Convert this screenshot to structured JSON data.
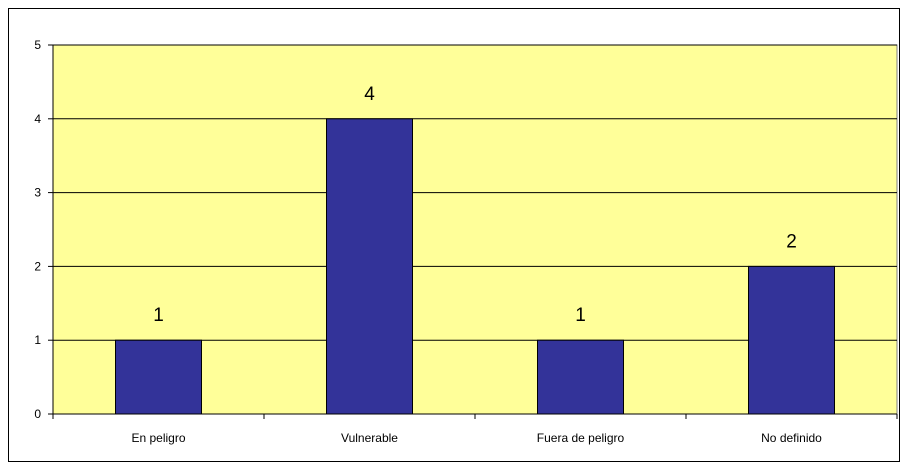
{
  "chart_data": {
    "type": "bar",
    "categories": [
      "En peligro",
      "Vulnerable",
      "Fuera de peligro",
      "No definido"
    ],
    "values": [
      1,
      4,
      1,
      2
    ],
    "data_labels": [
      "1",
      "4",
      "1",
      "2"
    ],
    "yticks": [
      "0",
      "1",
      "2",
      "3",
      "4",
      "5"
    ],
    "ylim": [
      0,
      5
    ],
    "title": "",
    "xlabel": "",
    "ylabel": "",
    "grid": true,
    "legend": "none",
    "colors": {
      "plot_background": "#FFFF99",
      "bar_fill": "#333399",
      "bar_stroke": "#000000",
      "gridline": "#000000"
    }
  }
}
